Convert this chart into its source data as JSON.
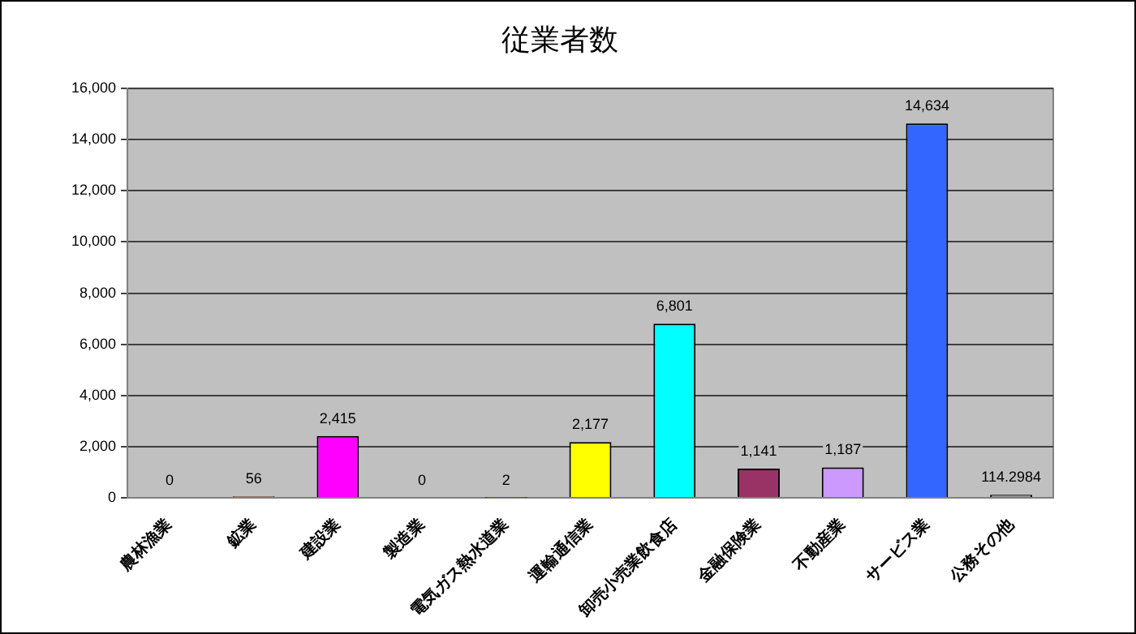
{
  "chart_data": {
    "type": "bar",
    "title": "従業者数",
    "categories": [
      "農林漁業",
      "鉱業",
      "建設業",
      "製造業",
      "電気ガス熱水道業",
      "運輸通信業",
      "卸売小売業飲食店",
      "金融保険業",
      "不動産業",
      "サービス業",
      "公務その他"
    ],
    "values": [
      0,
      56,
      2415,
      0,
      2,
      2177,
      6801,
      1141,
      1187,
      14634,
      114.2984
    ],
    "colors": [
      "#339966",
      "#993300",
      "#ff00ff",
      "#ff6600",
      "#99cc00",
      "#ffff00",
      "#00ffff",
      "#993366",
      "#cc99ff",
      "#3366ff",
      "#969696"
    ],
    "value_labels": [
      "0",
      "56",
      "2,415",
      "0",
      "2",
      "2,177",
      "6,801",
      "1,141",
      "1,187",
      "14,634",
      "114.2984"
    ],
    "ylim": [
      0,
      16000
    ],
    "yticks": [
      {
        "value": 0,
        "label": "0"
      },
      {
        "value": 2000,
        "label": "2,000"
      },
      {
        "value": 4000,
        "label": "4,000"
      },
      {
        "value": 6000,
        "label": "6,000"
      },
      {
        "value": 8000,
        "label": "8,000"
      },
      {
        "value": 10000,
        "label": "10,000"
      },
      {
        "value": 12000,
        "label": "12,000"
      },
      {
        "value": 14000,
        "label": "14,000"
      },
      {
        "value": 16000,
        "label": "16,000"
      }
    ],
    "grid": "y"
  }
}
